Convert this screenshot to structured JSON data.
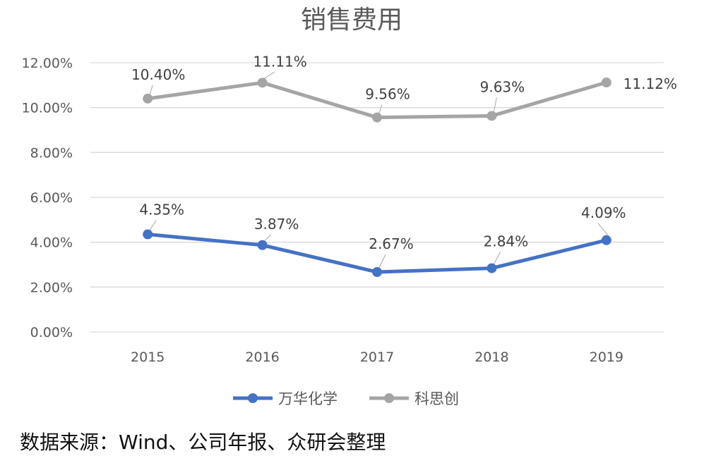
{
  "chart_data": {
    "type": "line",
    "title": "销售费用",
    "categories": [
      "2015",
      "2016",
      "2017",
      "2018",
      "2019"
    ],
    "ylim": [
      0,
      12
    ],
    "yticks": [
      "0.00%",
      "2.00%",
      "4.00%",
      "6.00%",
      "8.00%",
      "10.00%",
      "12.00%"
    ],
    "series": [
      {
        "name": "万华化学",
        "color": "#4472C4",
        "values": [
          4.35,
          3.87,
          2.67,
          2.84,
          4.09
        ],
        "labels": [
          "4.35%",
          "3.87%",
          "2.67%",
          "2.84%",
          "4.09%"
        ]
      },
      {
        "name": "科思创",
        "color": "#A5A5A5",
        "values": [
          10.4,
          11.11,
          9.56,
          9.63,
          11.12
        ],
        "labels": [
          "10.40%",
          "11.11%",
          "9.56%",
          "9.63%",
          "11.12%"
        ]
      }
    ],
    "grid": true,
    "legend": "bottom"
  },
  "source": "数据来源：Wind、公司年报、众研会整理"
}
